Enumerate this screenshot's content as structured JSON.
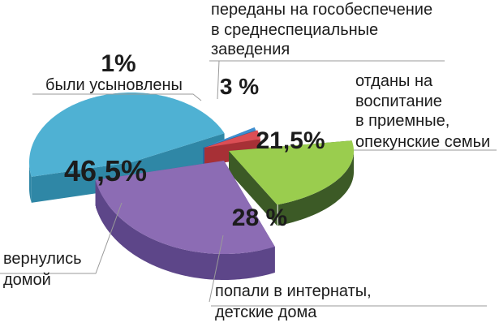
{
  "chart_data": {
    "type": "pie",
    "categories": [
      "вернулись домой",
      "были усыновлены",
      "переданы на гособеспечение в среднеспециальные заведения",
      "отданы на воспитание в приемные, опекунские семьи",
      "попали в интернаты, детские дома"
    ],
    "values": [
      46.5,
      1,
      3,
      21.5,
      28
    ],
    "value_labels": [
      "46,5%",
      "1%",
      "3 %",
      "21,5%",
      "28 %"
    ],
    "label_lines": [
      [
        "вернулись",
        "домой"
      ],
      [
        "были усыновлены"
      ],
      [
        "переданы на гособеспечение",
        " в среднеспециальные",
        "заведения"
      ],
      [
        "отданы на",
        "воспитание",
        "в приемные,",
        "опекунские семьи"
      ],
      [
        "попали в интернаты,",
        "детские дома"
      ]
    ],
    "colors": {
      "top": [
        "#4fb1d3",
        "#3f8fd0",
        "#dc4e55",
        "#9acd4e",
        "#8c6cb4"
      ],
      "side": [
        "#2f87a6",
        "#2a68a0",
        "#a73036",
        "#3c5a26",
        "#5d4689"
      ]
    },
    "title": "",
    "legend": "none"
  }
}
